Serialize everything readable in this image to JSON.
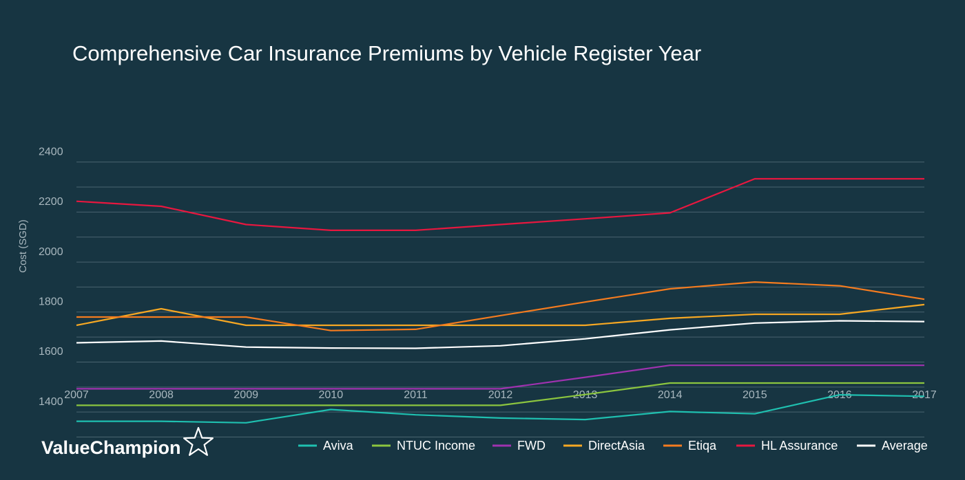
{
  "chart_data": {
    "type": "line",
    "title": "Comprehensive Car Insurance Premiums by Vehicle Register Year",
    "xlabel": "",
    "ylabel": "Cost (SGD)",
    "x": [
      "2007",
      "2008",
      "2009",
      "2010",
      "2011",
      "2012",
      "2013",
      "2014",
      "2015",
      "2016",
      "2017"
    ],
    "xlim": [
      2007,
      2017
    ],
    "ylim": [
      1300,
      2400
    ],
    "yticks": [
      "2400",
      "2200",
      "2000",
      "1800",
      "1600",
      "1400"
    ],
    "ytick_values": [
      2400,
      2200,
      2000,
      1800,
      1600,
      1400
    ],
    "grid_values": [
      2380,
      2280,
      2180,
      2080,
      1980,
      1880,
      1780,
      1680,
      1580,
      1480,
      1380,
      1280
    ],
    "grid": true,
    "legend_position": "bottom",
    "series": [
      {
        "name": "Aviva",
        "color": "#1fc0b0",
        "values": [
          1343,
          1343,
          1337,
          1390,
          1369,
          1356,
          1350,
          1382,
          1373,
          1449,
          1443
        ]
      },
      {
        "name": "NTUC Income",
        "color": "#8cc63f",
        "values": [
          1407,
          1407,
          1407,
          1407,
          1407,
          1407,
          1450,
          1496,
          1496,
          1496,
          1496
        ]
      },
      {
        "name": "FWD",
        "color": "#a032b0",
        "values": [
          1473,
          1473,
          1473,
          1473,
          1473,
          1473,
          1519,
          1567,
          1567,
          1567,
          1567
        ]
      },
      {
        "name": "DirectAsia",
        "color": "#f7a823",
        "values": [
          1727,
          1793,
          1727,
          1727,
          1727,
          1727,
          1727,
          1755,
          1771,
          1771,
          1810
        ]
      },
      {
        "name": "Etiqa",
        "color": "#f57c1f",
        "values": [
          1760,
          1760,
          1760,
          1706,
          1711,
          1766,
          1820,
          1873,
          1900,
          1885,
          1831
        ]
      },
      {
        "name": "HL Assurance",
        "color": "#e8173f",
        "values": [
          2223,
          2203,
          2130,
          2107,
          2107,
          2130,
          2153,
          2177,
          2313,
          2313,
          2313
        ]
      },
      {
        "name": "Average",
        "color": "#ffffff",
        "values": [
          1657,
          1664,
          1640,
          1636,
          1635,
          1645,
          1673,
          1709,
          1736,
          1745,
          1742
        ]
      }
    ]
  },
  "brand": {
    "name": "ValueChampion"
  },
  "colors": {
    "background": "#173542",
    "grid": "#4a6570",
    "tick": "#a9b8bf"
  }
}
